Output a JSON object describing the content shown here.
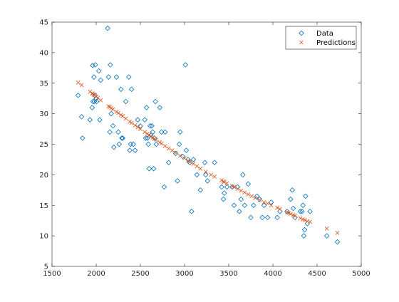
{
  "chart_data": {
    "type": "scatter",
    "title": "",
    "xlabel": "",
    "ylabel": "",
    "xlim": [
      1500,
      5000
    ],
    "ylim": [
      5,
      45
    ],
    "xticks": [
      1500,
      2000,
      2500,
      3000,
      3500,
      4000,
      4500,
      5000
    ],
    "yticks": [
      5,
      10,
      15,
      20,
      25,
      30,
      35,
      40,
      45
    ],
    "grid": false,
    "legend_position": "top-right",
    "colors": {
      "data": "#0072BD",
      "predictions": "#D95319",
      "axes": "#262626"
    },
    "series": [
      {
        "name": "Data",
        "marker": "diamond",
        "points": [
          [
            1795,
            33
          ],
          [
            1835,
            29.5
          ],
          [
            1845,
            26
          ],
          [
            1930,
            29
          ],
          [
            1955,
            31
          ],
          [
            1960,
            37.9
          ],
          [
            1965,
            32
          ],
          [
            1975,
            36
          ],
          [
            1980,
            32
          ],
          [
            1985,
            33
          ],
          [
            1990,
            38
          ],
          [
            2000,
            32.5
          ],
          [
            2005,
            32
          ],
          [
            2030,
            37
          ],
          [
            2040,
            29
          ],
          [
            2050,
            35.5
          ],
          [
            2130,
            44
          ],
          [
            2140,
            36
          ],
          [
            2155,
            27
          ],
          [
            2160,
            38
          ],
          [
            2170,
            30
          ],
          [
            2190,
            28
          ],
          [
            2200,
            24.5
          ],
          [
            2230,
            36
          ],
          [
            2250,
            27
          ],
          [
            2260,
            25
          ],
          [
            2280,
            34
          ],
          [
            2290,
            26
          ],
          [
            2300,
            26
          ],
          [
            2335,
            32
          ],
          [
            2370,
            36
          ],
          [
            2380,
            24
          ],
          [
            2390,
            25
          ],
          [
            2400,
            34
          ],
          [
            2420,
            25
          ],
          [
            2440,
            24
          ],
          [
            2470,
            29
          ],
          [
            2500,
            28
          ],
          [
            2550,
            29
          ],
          [
            2560,
            26
          ],
          [
            2570,
            31
          ],
          [
            2580,
            26
          ],
          [
            2590,
            25
          ],
          [
            2600,
            21
          ],
          [
            2610,
            28
          ],
          [
            2620,
            26.5
          ],
          [
            2630,
            28
          ],
          [
            2640,
            27
          ],
          [
            2650,
            21
          ],
          [
            2660,
            26
          ],
          [
            2670,
            32
          ],
          [
            2680,
            25
          ],
          [
            2720,
            31
          ],
          [
            2740,
            27
          ],
          [
            2770,
            18
          ],
          [
            2780,
            27
          ],
          [
            2820,
            22
          ],
          [
            2900,
            23.5
          ],
          [
            2920,
            19
          ],
          [
            2940,
            25
          ],
          [
            2950,
            27
          ],
          [
            2980,
            23
          ],
          [
            3010,
            38
          ],
          [
            3020,
            24
          ],
          [
            3040,
            22.5
          ],
          [
            3060,
            22
          ],
          [
            3080,
            14
          ],
          [
            3100,
            22.5
          ],
          [
            3140,
            20
          ],
          [
            3180,
            17.5
          ],
          [
            3230,
            22
          ],
          [
            3240,
            20
          ],
          [
            3260,
            19
          ],
          [
            3340,
            22
          ],
          [
            3420,
            18
          ],
          [
            3440,
            16
          ],
          [
            3450,
            17
          ],
          [
            3480,
            18
          ],
          [
            3540,
            18
          ],
          [
            3560,
            15
          ],
          [
            3600,
            18
          ],
          [
            3620,
            14
          ],
          [
            3640,
            16
          ],
          [
            3660,
            20
          ],
          [
            3680,
            15
          ],
          [
            3720,
            18.5
          ],
          [
            3750,
            13
          ],
          [
            3780,
            15
          ],
          [
            3820,
            16.5
          ],
          [
            3850,
            16
          ],
          [
            3880,
            13
          ],
          [
            3900,
            15
          ],
          [
            3940,
            13
          ],
          [
            3980,
            15.5
          ],
          [
            4050,
            13
          ],
          [
            4080,
            14
          ],
          [
            4160,
            14
          ],
          [
            4200,
            16
          ],
          [
            4220,
            17.5
          ],
          [
            4230,
            14.5
          ],
          [
            4250,
            13
          ],
          [
            4310,
            14
          ],
          [
            4330,
            14
          ],
          [
            4340,
            15
          ],
          [
            4350,
            10
          ],
          [
            4360,
            11
          ],
          [
            4370,
            16.5
          ],
          [
            4390,
            12
          ],
          [
            4420,
            14
          ],
          [
            4610,
            10
          ],
          [
            4730,
            9
          ]
        ]
      },
      {
        "name": "Predictions",
        "marker": "x",
        "points": [
          [
            1795,
            35.1
          ],
          [
            1835,
            34.7
          ],
          [
            1930,
            33.6
          ],
          [
            1955,
            33.3
          ],
          [
            1960,
            33.3
          ],
          [
            1975,
            33.1
          ],
          [
            1985,
            33.0
          ],
          [
            2000,
            32.8
          ],
          [
            2020,
            32.6
          ],
          [
            2050,
            32.2
          ],
          [
            2140,
            31.2
          ],
          [
            2155,
            31.1
          ],
          [
            2170,
            30.9
          ],
          [
            2190,
            30.7
          ],
          [
            2230,
            30.3
          ],
          [
            2250,
            30.1
          ],
          [
            2280,
            29.8
          ],
          [
            2300,
            29.6
          ],
          [
            2335,
            29.2
          ],
          [
            2380,
            28.7
          ],
          [
            2400,
            28.5
          ],
          [
            2440,
            28.1
          ],
          [
            2470,
            27.8
          ],
          [
            2500,
            27.5
          ],
          [
            2550,
            27.0
          ],
          [
            2580,
            26.7
          ],
          [
            2600,
            26.5
          ],
          [
            2620,
            26.3
          ],
          [
            2640,
            26.1
          ],
          [
            2660,
            25.9
          ],
          [
            2680,
            25.7
          ],
          [
            2720,
            25.3
          ],
          [
            2740,
            25.1
          ],
          [
            2780,
            24.7
          ],
          [
            2820,
            24.3
          ],
          [
            2860,
            24.0
          ],
          [
            2900,
            23.6
          ],
          [
            2950,
            23.1
          ],
          [
            3000,
            22.7
          ],
          [
            3040,
            22.3
          ],
          [
            3060,
            22.1
          ],
          [
            3100,
            21.8
          ],
          [
            3140,
            21.4
          ],
          [
            3180,
            21.0
          ],
          [
            3240,
            20.5
          ],
          [
            3300,
            20.0
          ],
          [
            3340,
            19.7
          ],
          [
            3420,
            19.1
          ],
          [
            3440,
            18.9
          ],
          [
            3450,
            18.8
          ],
          [
            3480,
            18.6
          ],
          [
            3540,
            18.1
          ],
          [
            3560,
            18.0
          ],
          [
            3600,
            17.7
          ],
          [
            3640,
            17.4
          ],
          [
            3680,
            17.1
          ],
          [
            3720,
            16.8
          ],
          [
            3760,
            16.5
          ],
          [
            3800,
            16.2
          ],
          [
            3850,
            15.9
          ],
          [
            3900,
            15.5
          ],
          [
            3940,
            15.3
          ],
          [
            3980,
            15.0
          ],
          [
            4050,
            14.6
          ],
          [
            4080,
            14.4
          ],
          [
            4160,
            13.9
          ],
          [
            4180,
            13.7
          ],
          [
            4200,
            13.6
          ],
          [
            4230,
            13.4
          ],
          [
            4250,
            13.3
          ],
          [
            4310,
            12.9
          ],
          [
            4340,
            12.7
          ],
          [
            4360,
            12.6
          ],
          [
            4390,
            12.4
          ],
          [
            4420,
            12.3
          ],
          [
            4610,
            11.2
          ],
          [
            4730,
            10.5
          ]
        ]
      }
    ]
  }
}
